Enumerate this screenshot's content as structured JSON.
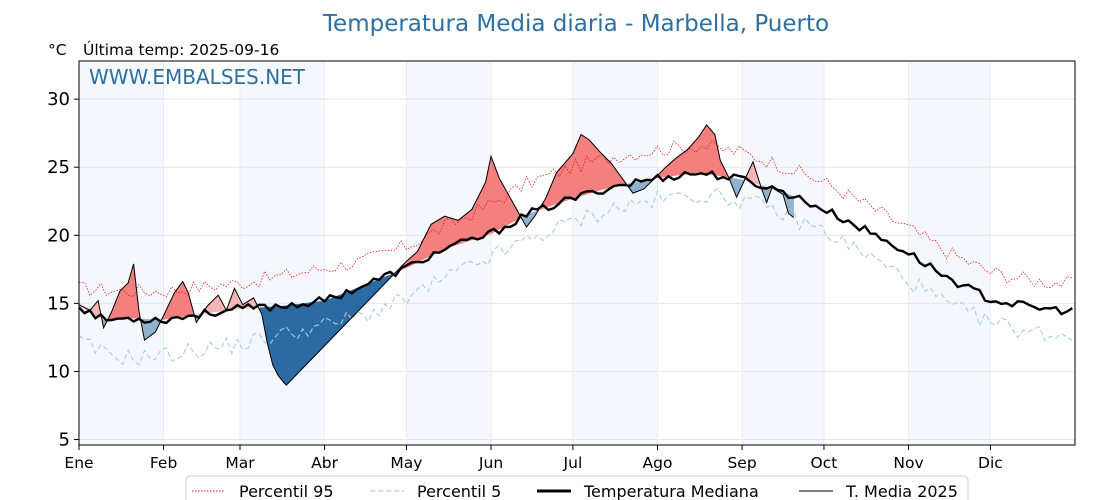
{
  "chart_data": {
    "type": "line",
    "title": "Temperatura Media diaria - Marbella, Puerto",
    "unit_label": "°C",
    "last_temp_label": "Última temp: 2025-09-16",
    "watermark": "WWW.EMBALSES.NET",
    "ylim": [
      4.6,
      32.8
    ],
    "yticks": [
      5,
      10,
      15,
      20,
      25,
      30
    ],
    "xlim": [
      1,
      366
    ],
    "months": [
      {
        "label": "Ene",
        "day": 1
      },
      {
        "label": "Feb",
        "day": 32
      },
      {
        "label": "Mar",
        "day": 60
      },
      {
        "label": "Abr",
        "day": 91
      },
      {
        "label": "May",
        "day": 121
      },
      {
        "label": "Jun",
        "day": 152
      },
      {
        "label": "Jul",
        "day": 182
      },
      {
        "label": "Ago",
        "day": 213
      },
      {
        "label": "Sep",
        "day": 244
      },
      {
        "label": "Oct",
        "day": 274
      },
      {
        "label": "Nov",
        "day": 305
      },
      {
        "label": "Dic",
        "day": 335
      }
    ],
    "grid": true,
    "legend_position": "bottom-center",
    "series": [
      {
        "name": "Percentil 95",
        "color": "#e41a1c",
        "style": "dotted",
        "points": [
          [
            1,
            16.1
          ],
          [
            10,
            16.0
          ],
          [
            20,
            15.9
          ],
          [
            32,
            15.9
          ],
          [
            45,
            16.2
          ],
          [
            60,
            16.5
          ],
          [
            75,
            17.0
          ],
          [
            91,
            17.6
          ],
          [
            105,
            18.1
          ],
          [
            121,
            19.2
          ],
          [
            135,
            20.6
          ],
          [
            152,
            22.3
          ],
          [
            166,
            23.9
          ],
          [
            182,
            25.0
          ],
          [
            197,
            25.8
          ],
          [
            213,
            26.3
          ],
          [
            228,
            26.6
          ],
          [
            244,
            26.1
          ],
          [
            259,
            25.1
          ],
          [
            274,
            23.9
          ],
          [
            290,
            22.2
          ],
          [
            305,
            20.5
          ],
          [
            320,
            18.7
          ],
          [
            335,
            17.3
          ],
          [
            350,
            16.7
          ],
          [
            366,
            16.4
          ]
        ]
      },
      {
        "name": "Percentil 5",
        "color": "#a6cfe0",
        "style": "dashed",
        "points": [
          [
            1,
            12.2
          ],
          [
            10,
            11.3
          ],
          [
            20,
            11.0
          ],
          [
            32,
            11.2
          ],
          [
            45,
            11.6
          ],
          [
            60,
            12.0
          ],
          [
            75,
            12.7
          ],
          [
            91,
            13.4
          ],
          [
            105,
            14.1
          ],
          [
            121,
            15.3
          ],
          [
            135,
            16.8
          ],
          [
            152,
            18.4
          ],
          [
            166,
            19.7
          ],
          [
            182,
            21.0
          ],
          [
            197,
            22.0
          ],
          [
            213,
            22.6
          ],
          [
            228,
            23.0
          ],
          [
            244,
            22.6
          ],
          [
            259,
            21.6
          ],
          [
            274,
            20.3
          ],
          [
            290,
            18.5
          ],
          [
            305,
            16.7
          ],
          [
            320,
            14.8
          ],
          [
            335,
            13.6
          ],
          [
            350,
            12.9
          ],
          [
            366,
            12.6
          ]
        ]
      },
      {
        "name": "Temperatura Mediana",
        "color": "#000000",
        "style": "solid-thick",
        "points": [
          [
            1,
            14.8
          ],
          [
            10,
            13.8
          ],
          [
            20,
            13.9
          ],
          [
            32,
            13.8
          ],
          [
            45,
            14.2
          ],
          [
            60,
            14.6
          ],
          [
            75,
            14.8
          ],
          [
            91,
            15.2
          ],
          [
            105,
            16.3
          ],
          [
            121,
            17.6
          ],
          [
            135,
            19.0
          ],
          [
            152,
            20.1
          ],
          [
            166,
            21.6
          ],
          [
            182,
            22.7
          ],
          [
            197,
            23.6
          ],
          [
            213,
            24.2
          ],
          [
            228,
            24.6
          ],
          [
            244,
            24.1
          ],
          [
            259,
            23.2
          ],
          [
            274,
            21.9
          ],
          [
            290,
            20.3
          ],
          [
            305,
            18.7
          ],
          [
            320,
            16.8
          ],
          [
            335,
            15.3
          ],
          [
            350,
            14.7
          ],
          [
            366,
            14.4
          ]
        ]
      },
      {
        "name": "T. Media 2025",
        "color": "#000000",
        "style": "solid-thin",
        "points": [
          [
            1,
            14.9
          ],
          [
            5,
            14.5
          ],
          [
            8,
            15.2
          ],
          [
            10,
            13.2
          ],
          [
            13,
            14.4
          ],
          [
            16,
            15.9
          ],
          [
            19,
            16.5
          ],
          [
            21,
            17.9
          ],
          [
            23,
            14.4
          ],
          [
            25,
            12.3
          ],
          [
            29,
            12.9
          ],
          [
            32,
            14.1
          ],
          [
            36,
            15.8
          ],
          [
            39,
            16.6
          ],
          [
            41,
            15.8
          ],
          [
            44,
            13.6
          ],
          [
            48,
            14.8
          ],
          [
            52,
            15.6
          ],
          [
            55,
            14.5
          ],
          [
            58,
            16.1
          ],
          [
            61,
            14.9
          ],
          [
            65,
            15.4
          ],
          [
            68,
            14.2
          ],
          [
            70,
            12.1
          ],
          [
            72,
            10.5
          ],
          [
            74,
            9.7
          ],
          [
            76,
            9.2
          ],
          [
            77,
            9.0
          ],
          [
            121,
            18.1
          ],
          [
            125,
            18.8
          ],
          [
            130,
            20.8
          ],
          [
            135,
            21.4
          ],
          [
            140,
            21.1
          ],
          [
            145,
            21.9
          ],
          [
            150,
            23.9
          ],
          [
            152,
            25.8
          ],
          [
            155,
            24.2
          ],
          [
            160,
            22.4
          ],
          [
            165,
            20.6
          ],
          [
            168,
            21.4
          ],
          [
            172,
            22.7
          ],
          [
            176,
            24.6
          ],
          [
            182,
            26.0
          ],
          [
            185,
            27.4
          ],
          [
            188,
            27.0
          ],
          [
            192,
            26.1
          ],
          [
            196,
            25.3
          ],
          [
            200,
            24.2
          ],
          [
            204,
            23.1
          ],
          [
            208,
            23.4
          ],
          [
            212,
            24.2
          ],
          [
            216,
            25.0
          ],
          [
            220,
            25.7
          ],
          [
            224,
            26.3
          ],
          [
            228,
            27.2
          ],
          [
            231,
            28.1
          ],
          [
            234,
            27.4
          ],
          [
            236,
            25.5
          ],
          [
            239,
            24.3
          ],
          [
            242,
            22.8
          ],
          [
            245,
            24.1
          ],
          [
            248,
            25.4
          ],
          [
            251,
            23.5
          ],
          [
            253,
            22.4
          ],
          [
            255,
            23.5
          ],
          [
            259,
            23.0
          ],
          [
            261,
            21.6
          ],
          [
            263,
            21.3
          ]
        ]
      }
    ],
    "legend": [
      {
        "label": "Percentil 95"
      },
      {
        "label": "Percentil 5"
      },
      {
        "label": "Temperatura Mediana"
      },
      {
        "label": "T. Media 2025"
      }
    ]
  }
}
